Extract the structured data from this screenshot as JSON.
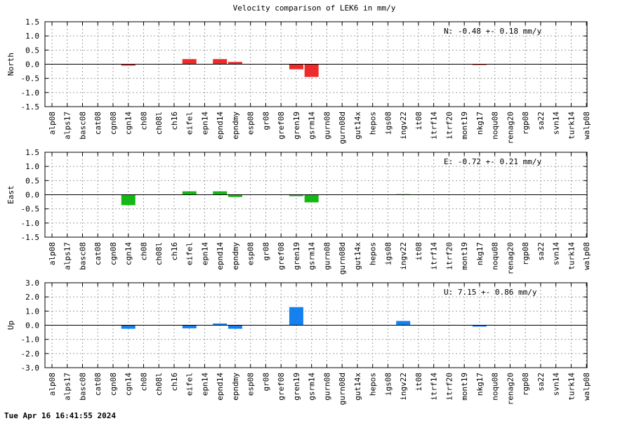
{
  "title": "Velocity comparison of LEK6 in mm/y",
  "footer": "Tue Apr 16 16:41:55 2024",
  "chart_data": [
    {
      "type": "bar",
      "ylabel": "North",
      "annotation": "N:  -0.48 +-  0.18 mm/y",
      "ylim": [
        -1.5,
        1.5
      ],
      "ytick_labels": [
        "1.5",
        "1.0",
        "0.5",
        "0.0",
        "-0.5",
        "-1.0",
        "-1.5"
      ],
      "ytick_values": [
        1.5,
        1.0,
        0.5,
        0.0,
        -0.5,
        -1.0,
        -1.5
      ],
      "color": "#ee2a2a",
      "categories": [
        "alp08",
        "alps17",
        "basc08",
        "cat08",
        "cgn08",
        "cgn14",
        "ch08",
        "ch08l",
        "ch16",
        "eifel",
        "epn14",
        "epnd14",
        "epndmy",
        "esp08",
        "gr08",
        "gref08",
        "gren19",
        "gsrm14",
        "gurn08",
        "gurn08d",
        "gut14x",
        "hepos",
        "igs08",
        "ingv22",
        "it08",
        "itrf14",
        "itrf20",
        "mont19",
        "nkg17",
        "noqu08",
        "renag20",
        "rgp08",
        "sa22",
        "svn14",
        "turk14",
        "walp08"
      ],
      "values": [
        0,
        0,
        0,
        0,
        0,
        -0.05,
        0,
        0,
        0,
        0.18,
        0,
        0.18,
        0.08,
        0,
        0,
        0,
        -0.18,
        -0.45,
        0,
        0,
        0,
        0,
        0,
        0,
        0,
        0,
        0,
        0,
        -0.03,
        0,
        0,
        0,
        0,
        0,
        0,
        0
      ]
    },
    {
      "type": "bar",
      "ylabel": "East",
      "annotation": "E:  -0.72 +-  0.21 mm/y",
      "ylim": [
        -1.5,
        1.5
      ],
      "ytick_labels": [
        "1.5",
        "1.0",
        "0.5",
        "0.0",
        "-0.5",
        "-1.0",
        "-1.5"
      ],
      "ytick_values": [
        1.5,
        1.0,
        0.5,
        0.0,
        -0.5,
        -1.0,
        -1.5
      ],
      "color": "#14b814",
      "categories": [
        "alp08",
        "alps17",
        "basc08",
        "cat08",
        "cgn08",
        "cgn14",
        "ch08",
        "ch08l",
        "ch16",
        "eifel",
        "epn14",
        "epnd14",
        "epndmy",
        "esp08",
        "gr08",
        "gref08",
        "gren19",
        "gsrm14",
        "gurn08",
        "gurn08d",
        "gut14x",
        "hepos",
        "igs08",
        "ingv22",
        "it08",
        "itrf14",
        "itrf20",
        "mont19",
        "nkg17",
        "noqu08",
        "renag20",
        "rgp08",
        "sa22",
        "svn14",
        "turk14",
        "walp08"
      ],
      "values": [
        0,
        0,
        0,
        0,
        0,
        -0.37,
        0,
        0,
        0,
        0.12,
        0,
        0.12,
        -0.08,
        0,
        0,
        0,
        -0.05,
        -0.27,
        0,
        0,
        0,
        0,
        0,
        0.02,
        0,
        0,
        0,
        0,
        0,
        0,
        0,
        0,
        0,
        0,
        0,
        0
      ]
    },
    {
      "type": "bar",
      "ylabel": "Up",
      "annotation": "U:   7.15 +-  0.86 mm/y",
      "ylim": [
        -3.0,
        3.0
      ],
      "ytick_labels": [
        "3.0",
        "2.0",
        "1.0",
        "0.0",
        "-1.0",
        "-2.0",
        "-3.0"
      ],
      "ytick_values": [
        3.0,
        2.0,
        1.0,
        0.0,
        -1.0,
        -2.0,
        -3.0
      ],
      "color": "#1580ee",
      "categories": [
        "alp08",
        "alps17",
        "basc08",
        "cat08",
        "cgn08",
        "cgn14",
        "ch08",
        "ch08l",
        "ch16",
        "eifel",
        "epn14",
        "epnd14",
        "epndmy",
        "esp08",
        "gr08",
        "gref08",
        "gren19",
        "gsrm14",
        "gurn08",
        "gurn08d",
        "gut14x",
        "hepos",
        "igs08",
        "ingv22",
        "it08",
        "itrf14",
        "itrf20",
        "mont19",
        "nkg17",
        "noqu08",
        "renag20",
        "rgp08",
        "sa22",
        "svn14",
        "turk14",
        "walp08"
      ],
      "values": [
        0,
        0,
        0,
        0,
        0,
        -0.25,
        0,
        0,
        0,
        -0.22,
        0,
        0.12,
        -0.25,
        0,
        0,
        0,
        1.28,
        0,
        0,
        0,
        0,
        0,
        0,
        0.3,
        0,
        0,
        0,
        0,
        -0.1,
        0,
        0,
        0,
        0,
        0,
        0,
        0
      ]
    }
  ]
}
